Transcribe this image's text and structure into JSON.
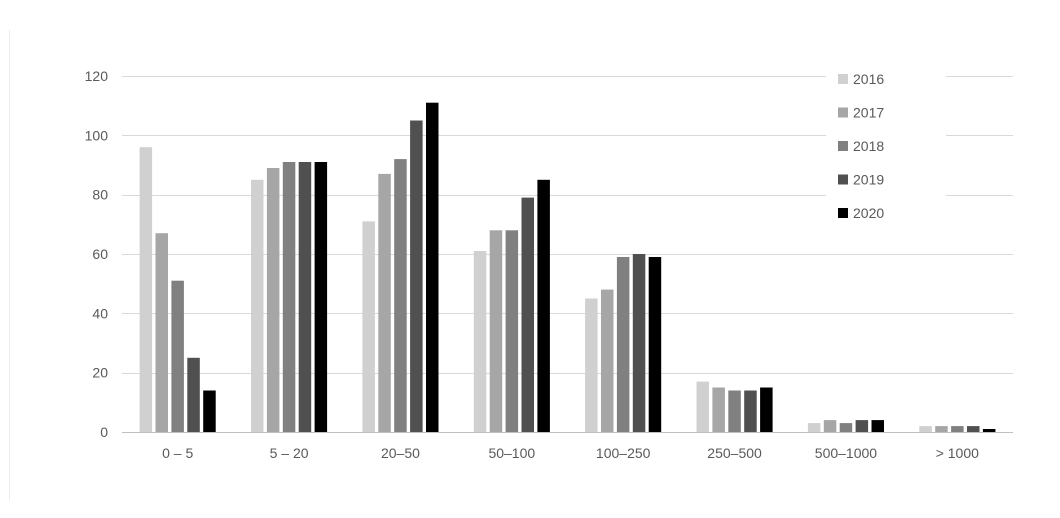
{
  "chart_data": {
    "type": "bar",
    "title": "",
    "xlabel": "",
    "ylabel": "",
    "ylim": [
      0,
      120
    ],
    "yticks": [
      0,
      20,
      40,
      60,
      80,
      100,
      120
    ],
    "grid": true,
    "legend_position": "top-right",
    "categories": [
      "0 – 5",
      "5 – 20",
      "20–50",
      "50–100",
      "100–250",
      "250–500",
      "500–1000",
      "> 1000"
    ],
    "series": [
      {
        "name": "2016",
        "color": "#d0d0d0",
        "values": [
          96,
          85,
          71,
          61,
          45,
          17,
          3,
          2
        ]
      },
      {
        "name": "2017",
        "color": "#a6a6a6",
        "values": [
          67,
          89,
          87,
          68,
          48,
          15,
          4,
          2
        ]
      },
      {
        "name": "2018",
        "color": "#808080",
        "values": [
          51,
          91,
          92,
          68,
          59,
          14,
          3,
          2
        ]
      },
      {
        "name": "2019",
        "color": "#505050",
        "values": [
          25,
          91,
          105,
          79,
          60,
          14,
          4,
          2
        ]
      },
      {
        "name": "2020",
        "color": "#000000",
        "values": [
          14,
          91,
          111,
          85,
          59,
          15,
          4,
          1
        ]
      }
    ]
  }
}
